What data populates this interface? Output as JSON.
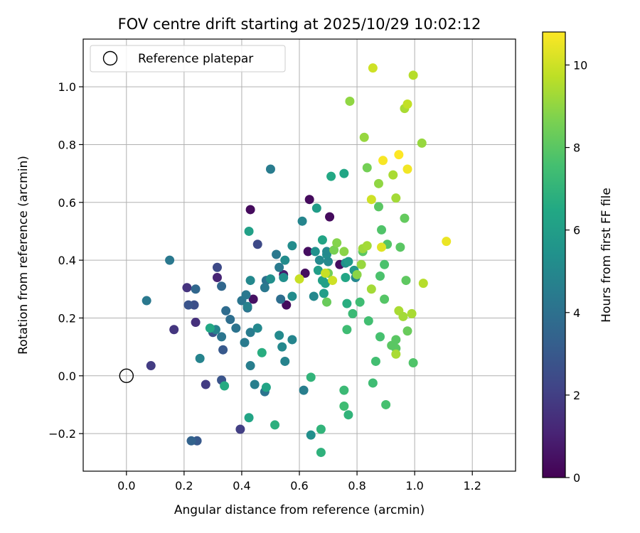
{
  "chart_data": {
    "type": "scatter",
    "title": "FOV centre drift starting at 2025/10/29 10:02:12",
    "xlabel": "Angular distance from reference (arcmin)",
    "ylabel": "Rotation from reference (arcmin)",
    "xlim": [
      -0.15,
      1.35
    ],
    "ylim": [
      -0.33,
      1.165
    ],
    "xticks": [
      0.0,
      0.2,
      0.4,
      0.6,
      0.8,
      1.0,
      1.2
    ],
    "xtick_labels": [
      "0.0",
      "0.2",
      "0.4",
      "0.6",
      "0.8",
      "1.0",
      "1.2"
    ],
    "yticks": [
      -0.2,
      0.0,
      0.2,
      0.4,
      0.6,
      0.8,
      1.0
    ],
    "ytick_labels": [
      "−0.2",
      "0.0",
      "0.2",
      "0.4",
      "0.6",
      "0.8",
      "1.0"
    ],
    "grid": true,
    "legend": {
      "location": "top-left",
      "entries": [
        "Reference platepar"
      ]
    },
    "reference_point": {
      "name": "Reference platepar",
      "x": 0.0,
      "y": 0.0
    },
    "colorbar": {
      "label": "Hours from first FF file",
      "colormap": "viridis",
      "range": [
        0,
        10.8
      ],
      "ticks": [
        0,
        2,
        4,
        6,
        8,
        10
      ],
      "tick_labels": [
        "0",
        "2",
        "4",
        "6",
        "8",
        "10"
      ]
    },
    "points": [
      [
        0.43,
        0.575,
        0.3
      ],
      [
        0.635,
        0.61,
        0.3
      ],
      [
        0.705,
        0.55,
        0.3
      ],
      [
        0.555,
        0.245,
        0.3
      ],
      [
        0.44,
        0.265,
        0.5
      ],
      [
        0.62,
        0.355,
        0.4
      ],
      [
        0.63,
        0.43,
        0.4
      ],
      [
        0.74,
        0.385,
        0.4
      ],
      [
        0.545,
        0.35,
        0.8
      ],
      [
        0.315,
        0.34,
        1.1
      ],
      [
        0.21,
        0.305,
        1.6
      ],
      [
        0.24,
        0.185,
        1.5
      ],
      [
        0.165,
        0.16,
        1.7
      ],
      [
        0.085,
        0.035,
        1.9
      ],
      [
        0.275,
        -0.03,
        1.9
      ],
      [
        0.395,
        -0.185,
        2.0
      ],
      [
        0.315,
        0.375,
        2.4
      ],
      [
        0.455,
        0.455,
        2.4
      ],
      [
        0.235,
        0.245,
        2.6
      ],
      [
        0.215,
        0.245,
        2.8
      ],
      [
        0.3,
        0.15,
        2.7
      ],
      [
        0.33,
        -0.015,
        2.8
      ],
      [
        0.335,
        0.09,
        3.0
      ],
      [
        0.245,
        -0.225,
        3.0
      ],
      [
        0.225,
        -0.225,
        3.4
      ],
      [
        0.24,
        0.3,
        3.6
      ],
      [
        0.33,
        0.31,
        3.6
      ],
      [
        0.345,
        0.225,
        3.8
      ],
      [
        0.36,
        0.195,
        3.9
      ],
      [
        0.38,
        0.165,
        4.1
      ],
      [
        0.33,
        0.135,
        4.2
      ],
      [
        0.41,
        0.115,
        4.4
      ],
      [
        0.485,
        0.33,
        4.0
      ],
      [
        0.52,
        0.42,
        4.3
      ],
      [
        0.53,
        0.375,
        4.4
      ],
      [
        0.535,
        0.265,
        3.9
      ],
      [
        0.48,
        0.305,
        4.3
      ],
      [
        0.48,
        -0.055,
        4.1
      ],
      [
        0.445,
        -0.03,
        4.6
      ],
      [
        0.4,
        0.26,
        4.2
      ],
      [
        0.42,
        0.235,
        4.0
      ],
      [
        0.43,
        0.15,
        4.5
      ],
      [
        0.43,
        0.035,
        4.6
      ],
      [
        0.415,
        0.28,
        4.3
      ],
      [
        0.15,
        0.4,
        4.3
      ],
      [
        0.07,
        0.26,
        4.3
      ],
      [
        0.31,
        0.16,
        4.8
      ],
      [
        0.5,
        0.715,
        4.5
      ],
      [
        0.255,
        0.06,
        4.8
      ],
      [
        0.61,
        0.535,
        4.9
      ],
      [
        0.575,
        0.45,
        5.2
      ],
      [
        0.55,
        0.4,
        5.2
      ],
      [
        0.545,
        0.34,
        5.3
      ],
      [
        0.42,
        0.24,
        4.7
      ],
      [
        0.43,
        0.33,
        5.0
      ],
      [
        0.455,
        0.165,
        5.0
      ],
      [
        0.5,
        0.335,
        5.3
      ],
      [
        0.53,
        0.14,
        5.1
      ],
      [
        0.54,
        0.1,
        5.0
      ],
      [
        0.55,
        0.05,
        4.8
      ],
      [
        0.575,
        0.125,
        4.9
      ],
      [
        0.575,
        0.275,
        5.2
      ],
      [
        0.615,
        -0.05,
        4.6
      ],
      [
        0.64,
        -0.205,
        5.3
      ],
      [
        0.65,
        0.275,
        5.0
      ],
      [
        0.655,
        0.43,
        5.4
      ],
      [
        0.67,
        0.4,
        5.1
      ],
      [
        0.695,
        0.42,
        5.3
      ],
      [
        0.695,
        0.43,
        5.1
      ],
      [
        0.7,
        0.395,
        5.1
      ],
      [
        0.76,
        0.39,
        5.4
      ],
      [
        0.79,
        0.365,
        5.7
      ],
      [
        0.795,
        0.34,
        5.0
      ],
      [
        0.77,
        0.395,
        5.8
      ],
      [
        0.66,
        0.58,
        5.9
      ],
      [
        0.665,
        0.365,
        6.0
      ],
      [
        0.68,
        0.33,
        6.1
      ],
      [
        0.685,
        0.285,
        6.0
      ],
      [
        0.69,
        0.32,
        6.1
      ],
      [
        0.68,
        0.47,
        6.3
      ],
      [
        0.71,
        0.69,
        6.5
      ],
      [
        0.755,
        0.7,
        6.4
      ],
      [
        0.76,
        0.34,
        6.4
      ],
      [
        0.765,
        0.25,
        6.7
      ],
      [
        0.47,
        0.08,
        6.7
      ],
      [
        0.515,
        -0.17,
        6.8
      ],
      [
        0.425,
        0.5,
        6.1
      ],
      [
        0.34,
        -0.035,
        6.6
      ],
      [
        0.425,
        -0.145,
        6.3
      ],
      [
        0.485,
        -0.04,
        6.3
      ],
      [
        0.29,
        0.165,
        6.5
      ],
      [
        0.64,
        -0.005,
        7.0
      ],
      [
        0.675,
        -0.185,
        7.0
      ],
      [
        0.675,
        -0.265,
        6.9
      ],
      [
        0.77,
        -0.135,
        7.0
      ],
      [
        0.755,
        -0.05,
        7.3
      ],
      [
        0.755,
        -0.105,
        7.4
      ],
      [
        0.765,
        0.16,
        7.4
      ],
      [
        0.785,
        0.215,
        7.3
      ],
      [
        0.81,
        0.255,
        7.4
      ],
      [
        0.84,
        0.19,
        7.5
      ],
      [
        0.855,
        -0.025,
        7.4
      ],
      [
        0.865,
        0.05,
        7.5
      ],
      [
        0.9,
        -0.1,
        7.6
      ],
      [
        0.88,
        0.135,
        7.6
      ],
      [
        0.88,
        0.345,
        7.7
      ],
      [
        0.895,
        0.385,
        7.7
      ],
      [
        0.885,
        0.505,
        7.8
      ],
      [
        0.875,
        0.585,
        8.0
      ],
      [
        0.895,
        0.265,
        7.9
      ],
      [
        0.905,
        0.455,
        7.9
      ],
      [
        0.92,
        0.105,
        8.0
      ],
      [
        0.935,
        0.125,
        8.0
      ],
      [
        0.935,
        0.095,
        8.0
      ],
      [
        0.95,
        0.445,
        8.0
      ],
      [
        0.97,
        0.33,
        8.1
      ],
      [
        0.965,
        0.545,
        8.2
      ],
      [
        0.975,
        0.155,
        8.3
      ],
      [
        0.995,
        0.045,
        7.8
      ],
      [
        0.82,
        0.43,
        8.0
      ],
      [
        0.695,
        0.255,
        8.3
      ],
      [
        0.7,
        0.355,
        8.5
      ],
      [
        0.72,
        0.435,
        8.6
      ],
      [
        0.73,
        0.46,
        8.8
      ],
      [
        0.755,
        0.43,
        8.9
      ],
      [
        0.8,
        0.35,
        8.9
      ],
      [
        0.815,
        0.385,
        9.1
      ],
      [
        0.82,
        0.44,
        9.2
      ],
      [
        0.835,
        0.45,
        9.3
      ],
      [
        0.835,
        0.72,
        8.5
      ],
      [
        0.825,
        0.825,
        9.1
      ],
      [
        0.775,
        0.95,
        9.0
      ],
      [
        0.85,
        0.3,
        9.3
      ],
      [
        0.875,
        0.665,
        9.0
      ],
      [
        0.925,
        0.695,
        9.4
      ],
      [
        0.935,
        0.615,
        9.3
      ],
      [
        0.935,
        0.075,
        9.4
      ],
      [
        0.945,
        0.225,
        9.4
      ],
      [
        0.96,
        0.205,
        9.3
      ],
      [
        0.99,
        0.215,
        9.4
      ],
      [
        1.025,
        0.805,
        9.1
      ],
      [
        0.965,
        0.925,
        9.4
      ],
      [
        0.975,
        0.94,
        9.8
      ],
      [
        0.995,
        1.04,
        9.6
      ],
      [
        1.03,
        0.32,
        9.6
      ],
      [
        0.855,
        1.065,
        10.0
      ],
      [
        0.6,
        0.335,
        9.9
      ],
      [
        0.69,
        0.355,
        9.9
      ],
      [
        0.715,
        0.33,
        10.0
      ],
      [
        0.85,
        0.61,
        10.0
      ],
      [
        0.885,
        0.445,
        10.3
      ],
      [
        0.89,
        0.745,
        10.7
      ],
      [
        0.945,
        0.765,
        10.8
      ],
      [
        0.975,
        0.715,
        10.6
      ],
      [
        1.11,
        0.465,
        10.5
      ]
    ]
  }
}
